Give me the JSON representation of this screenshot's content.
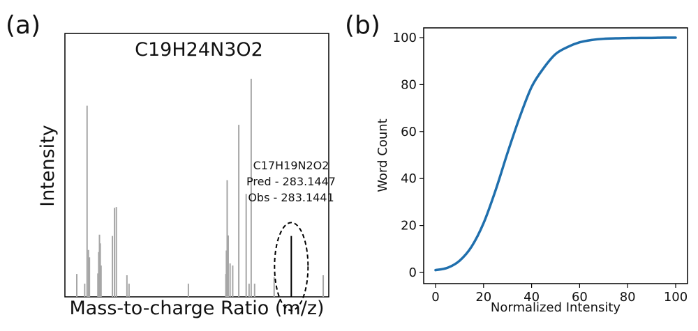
{
  "figure": {
    "panel_a_label": "(a)",
    "panel_b_label": "(b)"
  },
  "colors": {
    "peak": "#a6a6a6",
    "highlight_peak": "#000000",
    "curve": "#1f6fad",
    "frame": "#000000"
  },
  "chart_data": [
    {
      "type": "bar",
      "title": "C19H24N3O2",
      "xlabel": "Mass-to-charge Ratio (m/z)",
      "ylabel": "Intensity",
      "ticks_shown": false,
      "ylim": [
        0,
        1
      ],
      "xlim": [
        0,
        1
      ],
      "grid": false,
      "peaks": [
        {
          "x": 0.045,
          "y": 0.087
        },
        {
          "x": 0.075,
          "y": 0.05
        },
        {
          "x": 0.084,
          "y": 0.726
        },
        {
          "x": 0.089,
          "y": 0.178
        },
        {
          "x": 0.093,
          "y": 0.15
        },
        {
          "x": 0.125,
          "y": 0.089
        },
        {
          "x": 0.128,
          "y": 0.17
        },
        {
          "x": 0.131,
          "y": 0.236
        },
        {
          "x": 0.134,
          "y": 0.203
        },
        {
          "x": 0.137,
          "y": 0.119
        },
        {
          "x": 0.18,
          "y": 0.231
        },
        {
          "x": 0.188,
          "y": 0.338
        },
        {
          "x": 0.195,
          "y": 0.341
        },
        {
          "x": 0.235,
          "y": 0.082
        },
        {
          "x": 0.243,
          "y": 0.05
        },
        {
          "x": 0.468,
          "y": 0.05
        },
        {
          "x": 0.61,
          "y": 0.087
        },
        {
          "x": 0.612,
          "y": 0.176
        },
        {
          "x": 0.615,
          "y": 0.443
        },
        {
          "x": 0.619,
          "y": 0.233
        },
        {
          "x": 0.626,
          "y": 0.127
        },
        {
          "x": 0.636,
          "y": 0.119
        },
        {
          "x": 0.659,
          "y": 0.653
        },
        {
          "x": 0.687,
          "y": 0.391
        },
        {
          "x": 0.698,
          "y": 0.05
        },
        {
          "x": 0.706,
          "y": 0.828
        },
        {
          "x": 0.719,
          "y": 0.05
        },
        {
          "x": 0.793,
          "y": 0.075
        },
        {
          "x": 0.979,
          "y": 0.082
        }
      ],
      "highlight": {
        "x": 0.858,
        "y": 0.231,
        "formula": "C17H19N2O2",
        "pred": "Pred - 283.1447",
        "obs": "Obs - 283.1441"
      }
    },
    {
      "type": "line",
      "xlabel": "Normalized Intensity",
      "ylabel": "Word Count",
      "xlim": [
        0,
        100
      ],
      "ylim": [
        0,
        100
      ],
      "xticks": [
        0,
        20,
        40,
        60,
        80,
        100
      ],
      "yticks": [
        0,
        20,
        40,
        60,
        80,
        100
      ],
      "grid": false,
      "series": [
        {
          "x": [
            0,
            5,
            10,
            15,
            20,
            25,
            30,
            35,
            40,
            45,
            50,
            55,
            60,
            65,
            70,
            75,
            80,
            85,
            90,
            95,
            100
          ],
          "y": [
            1,
            2,
            5,
            11,
            21,
            35,
            51,
            66,
            79,
            87,
            93,
            96,
            98,
            99,
            99.5,
            99.7,
            99.8,
            99.9,
            99.9,
            100,
            100
          ]
        }
      ]
    }
  ]
}
